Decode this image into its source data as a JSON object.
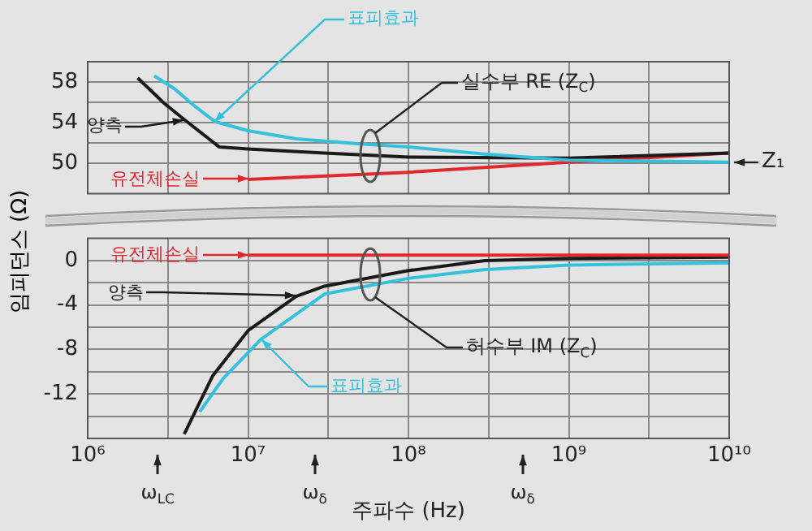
{
  "chart_data": [
    {
      "type": "line",
      "ylabel": "임피던스 (Ω)",
      "log": "x",
      "xlim": [
        1000000,
        10000000000
      ],
      "xticks": [
        {
          "value": 1000000,
          "label": null
        },
        {
          "value": 3162278,
          "label": null
        },
        {
          "value": 10000000,
          "label": null
        },
        {
          "value": 31622777,
          "label": null
        },
        {
          "value": 100000000,
          "label": null
        },
        {
          "value": 316227766,
          "label": null
        },
        {
          "value": 1000000000,
          "label": null
        },
        {
          "value": 3162277660,
          "label": null
        },
        {
          "value": 10000000000,
          "label": null
        }
      ],
      "ylim": [
        47,
        60
      ],
      "yticks": [
        50,
        {
          "value": 52,
          "label": null
        },
        54,
        {
          "value": 56,
          "label": null
        },
        58
      ],
      "tick_labels": "y",
      "grid": true,
      "legend": "left",
      "series": [
        {
          "name": "표피효과",
          "color": "#35c0dc",
          "x": [
            2600000,
            3500000,
            4500000,
            6200000,
            10000000,
            20000000,
            50000000,
            100000000,
            300000000,
            1000000000,
            10000000000
          ],
          "values": [
            58.6,
            57.3,
            55.8,
            54.1,
            53.2,
            52.4,
            51.9,
            51.6,
            50.9,
            50.3,
            50.1
          ]
        },
        {
          "name": "양측",
          "color": "#1a1a1a",
          "x": [
            2050000,
            3000000,
            4000000,
            6600000,
            10000000,
            30000000,
            100000000,
            1000000000,
            10000000000
          ],
          "values": [
            58.4,
            55.9,
            54.3,
            51.6,
            51.4,
            51.0,
            50.6,
            50.5,
            51.0
          ]
        },
        {
          "name": "유전체손실",
          "color": "#e0282e",
          "x": [
            10000000,
            100000000,
            1000000000,
            10000000000
          ],
          "values": [
            48.4,
            49.1,
            50.1,
            51.0
          ]
        }
      ],
      "annotations": [
        "실수부 RE (Z$_{C}$)",
        "Z₁"
      ]
    },
    {
      "type": "line",
      "xlabel": "주파수 (Hz)",
      "log": "x",
      "xlim": [
        1000000,
        10000000000
      ],
      "xticks": [
        {
          "value": 1000000,
          "label": "10⁶"
        },
        {
          "value": 3162278,
          "label": null
        },
        {
          "value": 10000000,
          "label": "10⁷"
        },
        {
          "value": 31622777,
          "label": null
        },
        {
          "value": 100000000,
          "label": "10⁸"
        },
        {
          "value": 316227766,
          "label": null
        },
        {
          "value": 1000000000,
          "label": "10⁹"
        },
        {
          "value": 3162277660,
          "label": null
        },
        {
          "value": 10000000000,
          "label": "10¹⁰"
        }
      ],
      "ylim": [
        -16,
        2
      ],
      "yticks": [
        0,
        {
          "value": -2,
          "label": null
        },
        -4,
        {
          "value": -6,
          "label": null
        },
        -8,
        {
          "value": -10,
          "label": null
        },
        -12,
        {
          "value": -14,
          "label": null
        }
      ],
      "grid": true,
      "legend": "left",
      "series": [
        {
          "name": "유전체손실",
          "color": "#e0282e",
          "x": [
            10000000,
            100000000,
            1000000000,
            10000000000
          ],
          "values": [
            0.5,
            0.5,
            0.5,
            0.5
          ]
        },
        {
          "name": "양측",
          "color": "#1a1a1a",
          "x": [
            4000000,
            6000000,
            10000000,
            20000000,
            30000000,
            100000000,
            300000000,
            1000000000,
            10000000000
          ],
          "values": [
            -15.6,
            -10.4,
            -6.3,
            -3.2,
            -2.3,
            -0.9,
            0.0,
            0.2,
            0.3
          ]
        },
        {
          "name": "표피효과",
          "color": "#35c0dc",
          "x": [
            5000000,
            7000000,
            12000000,
            30000000,
            100000000,
            300000000,
            1000000000,
            10000000000
          ],
          "values": [
            -13.6,
            -10.6,
            -7.1,
            -3.0,
            -1.6,
            -0.8,
            -0.4,
            -0.2
          ]
        }
      ],
      "annotations": [
        "허수부 IM (Z$_{C}$)",
        "ω$_{LC}$",
        "ω$_{δ}$",
        "ω$_{δ}$"
      ]
    }
  ]
}
